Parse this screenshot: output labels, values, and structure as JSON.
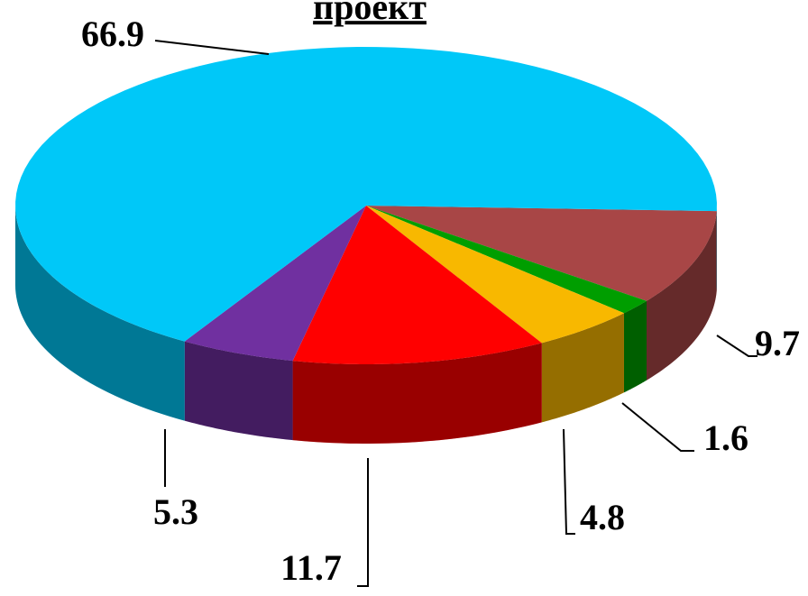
{
  "chart_data": {
    "type": "pie",
    "title": "проект",
    "values": [
      9.7,
      1.6,
      4.8,
      11.7,
      5.3,
      66.9
    ],
    "colors": [
      "#a84646",
      "#009e00",
      "#f8b800",
      "#ff0000",
      "#7030a0",
      "#00c8f8"
    ]
  }
}
